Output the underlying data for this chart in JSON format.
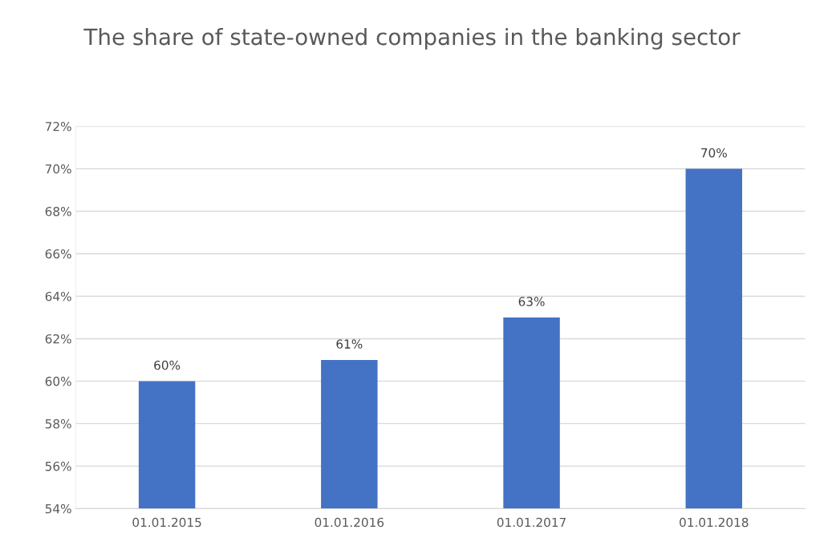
{
  "chart_data": {
    "type": "bar",
    "title": "The share of state-owned companies in the banking sector",
    "categories": [
      "01.01.2015",
      "01.01.2016",
      "01.01.2017",
      "01.01.2018"
    ],
    "values": [
      60,
      61,
      63,
      70
    ],
    "value_labels": [
      "60%",
      "61%",
      "63%",
      "70%"
    ],
    "color": "#4472c4",
    "ylim": [
      54,
      72
    ],
    "yticks": [
      {
        "value": 54,
        "label": "54%"
      },
      {
        "value": 56,
        "label": "56%"
      },
      {
        "value": 58,
        "label": "58%"
      },
      {
        "value": 60,
        "label": "60%"
      },
      {
        "value": 62,
        "label": "62%"
      },
      {
        "value": 64,
        "label": "64%"
      },
      {
        "value": 66,
        "label": "66%"
      },
      {
        "value": 68,
        "label": "68%"
      },
      {
        "value": 70,
        "label": "70%"
      },
      {
        "value": 72,
        "label": "72%"
      }
    ],
    "grid": "y"
  }
}
